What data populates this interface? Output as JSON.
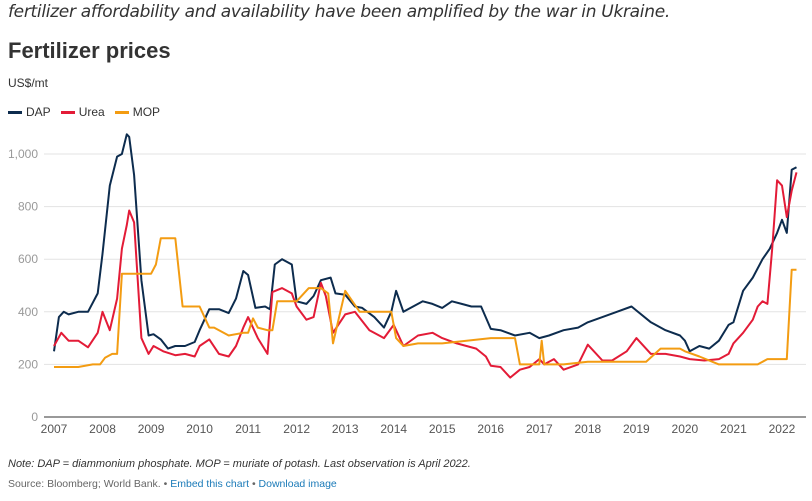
{
  "intro_text": "fertilizer affordability and availability have been amplified by the war in Ukraine.",
  "chart_data": {
    "type": "line",
    "title": "Fertilizer prices",
    "ylabel": "US$/mt",
    "xlabel": "",
    "ylim": [
      0,
      1000
    ],
    "xlim": [
      2007,
      2022.3
    ],
    "yticks": [
      "0",
      "200",
      "400",
      "600",
      "800",
      "1,000"
    ],
    "ytick_values": [
      0,
      200,
      400,
      600,
      800,
      1000
    ],
    "xticks": [
      "2007",
      "2008",
      "2009",
      "2010",
      "2011",
      "2012",
      "2013",
      "2014",
      "2015",
      "2016",
      "2017",
      "2018",
      "2019",
      "2020",
      "2021",
      "2022"
    ],
    "xtick_values": [
      2007,
      2008,
      2009,
      2010,
      2011,
      2012,
      2013,
      2014,
      2015,
      2016,
      2017,
      2018,
      2019,
      2020,
      2021,
      2022
    ],
    "grid": true,
    "legend_position": "top-left",
    "series": [
      {
        "name": "DAP",
        "color": "#0d2c4e",
        "x": [
          2007.0,
          2007.1,
          2007.2,
          2007.3,
          2007.5,
          2007.7,
          2007.9,
          2008.0,
          2008.15,
          2008.3,
          2008.4,
          2008.5,
          2008.55,
          2008.65,
          2008.8,
          2008.95,
          2009.05,
          2009.2,
          2009.35,
          2009.5,
          2009.7,
          2009.9,
          2010.0,
          2010.2,
          2010.4,
          2010.6,
          2010.75,
          2010.9,
          2011.0,
          2011.15,
          2011.35,
          2011.45,
          2011.55,
          2011.7,
          2011.9,
          2012.0,
          2012.2,
          2012.35,
          2012.5,
          2012.7,
          2012.8,
          2013.0,
          2013.2,
          2013.35,
          2013.6,
          2013.8,
          2013.95,
          2014.05,
          2014.2,
          2014.4,
          2014.6,
          2014.8,
          2015.0,
          2015.2,
          2015.4,
          2015.6,
          2015.8,
          2016.0,
          2016.2,
          2016.5,
          2016.8,
          2017.0,
          2017.2,
          2017.5,
          2017.8,
          2018.0,
          2018.3,
          2018.6,
          2018.9,
          2019.0,
          2019.3,
          2019.6,
          2019.9,
          2020.0,
          2020.1,
          2020.3,
          2020.5,
          2020.7,
          2020.9,
          2021.0,
          2021.2,
          2021.4,
          2021.6,
          2021.75,
          2021.9,
          2022.0,
          2022.1,
          2022.2,
          2022.3
        ],
        "y": [
          250,
          380,
          400,
          390,
          400,
          400,
          470,
          620,
          880,
          990,
          1000,
          1075,
          1065,
          920,
          520,
          310,
          315,
          295,
          260,
          270,
          270,
          285,
          330,
          410,
          410,
          395,
          450,
          555,
          540,
          415,
          420,
          410,
          580,
          600,
          580,
          440,
          430,
          460,
          520,
          530,
          470,
          465,
          420,
          415,
          380,
          340,
          400,
          480,
          400,
          420,
          440,
          430,
          415,
          440,
          430,
          420,
          420,
          335,
          330,
          310,
          320,
          300,
          310,
          330,
          340,
          360,
          380,
          400,
          420,
          405,
          360,
          330,
          310,
          290,
          250,
          270,
          260,
          290,
          350,
          360,
          480,
          530,
          600,
          640,
          700,
          750,
          700,
          940,
          950
        ]
      },
      {
        "name": "Urea",
        "color": "#e31b37",
        "x": [
          2007.0,
          2007.15,
          2007.3,
          2007.5,
          2007.7,
          2007.9,
          2008.0,
          2008.15,
          2008.3,
          2008.4,
          2008.5,
          2008.55,
          2008.65,
          2008.8,
          2008.95,
          2009.05,
          2009.25,
          2009.5,
          2009.7,
          2009.9,
          2010.0,
          2010.2,
          2010.4,
          2010.6,
          2010.75,
          2010.9,
          2011.0,
          2011.2,
          2011.4,
          2011.5,
          2011.7,
          2011.9,
          2012.0,
          2012.2,
          2012.35,
          2012.5,
          2012.6,
          2012.75,
          2013.0,
          2013.2,
          2013.5,
          2013.8,
          2014.0,
          2014.2,
          2014.5,
          2014.8,
          2015.0,
          2015.3,
          2015.5,
          2015.7,
          2015.9,
          2016.0,
          2016.2,
          2016.4,
          2016.6,
          2016.8,
          2017.0,
          2017.1,
          2017.3,
          2017.5,
          2017.8,
          2018.0,
          2018.3,
          2018.5,
          2018.8,
          2019.0,
          2019.3,
          2019.6,
          2019.9,
          2020.1,
          2020.4,
          2020.7,
          2020.9,
          2021.0,
          2021.2,
          2021.4,
          2021.5,
          2021.6,
          2021.7,
          2021.8,
          2021.9,
          2022.0,
          2022.1,
          2022.2,
          2022.3
        ],
        "y": [
          270,
          320,
          290,
          290,
          265,
          320,
          400,
          330,
          450,
          640,
          730,
          785,
          740,
          300,
          240,
          270,
          250,
          235,
          240,
          230,
          270,
          295,
          240,
          230,
          270,
          340,
          380,
          300,
          240,
          475,
          490,
          470,
          420,
          370,
          380,
          510,
          460,
          320,
          390,
          400,
          330,
          300,
          350,
          270,
          310,
          320,
          300,
          280,
          270,
          260,
          230,
          195,
          190,
          150,
          180,
          190,
          220,
          200,
          220,
          180,
          200,
          275,
          215,
          215,
          250,
          300,
          240,
          240,
          230,
          220,
          215,
          220,
          240,
          280,
          320,
          370,
          420,
          440,
          430,
          640,
          900,
          880,
          760,
          860,
          930
        ]
      },
      {
        "name": "MOP",
        "color": "#f39c12",
        "x": [
          2007.0,
          2007.5,
          2007.8,
          2007.95,
          2008.05,
          2008.2,
          2008.3,
          2008.4,
          2008.9,
          2009.0,
          2009.1,
          2009.2,
          2009.5,
          2009.65,
          2009.8,
          2009.9,
          2010.0,
          2010.2,
          2010.3,
          2010.6,
          2010.9,
          2011.0,
          2011.1,
          2011.2,
          2011.4,
          2011.5,
          2011.6,
          2011.9,
          2012.0,
          2012.25,
          2012.5,
          2012.65,
          2012.75,
          2013.0,
          2013.3,
          2013.95,
          2014.05,
          2014.2,
          2014.5,
          2015.0,
          2016.0,
          2016.3,
          2016.5,
          2016.6,
          2016.8,
          2017.0,
          2017.05,
          2017.1,
          2017.2,
          2017.5,
          2018.0,
          2018.5,
          2019.0,
          2019.2,
          2019.5,
          2019.7,
          2019.9,
          2020.0,
          2020.3,
          2020.7,
          2021.0,
          2021.5,
          2021.7,
          2021.9,
          2022.0,
          2022.1,
          2022.2,
          2022.3
        ],
        "y": [
          190,
          190,
          200,
          200,
          225,
          240,
          240,
          545,
          545,
          545,
          580,
          680,
          680,
          420,
          420,
          420,
          420,
          340,
          340,
          310,
          320,
          320,
          375,
          340,
          330,
          330,
          440,
          440,
          440,
          490,
          490,
          470,
          280,
          480,
          400,
          400,
          300,
          270,
          280,
          280,
          300,
          300,
          300,
          200,
          200,
          200,
          290,
          200,
          200,
          200,
          210,
          210,
          210,
          210,
          260,
          260,
          260,
          250,
          230,
          200,
          200,
          200,
          220,
          220,
          220,
          220,
          560,
          560
        ]
      }
    ]
  },
  "note": "Note: DAP = diammonium phosphate. MOP = muriate of potash. Last observation is April 2022.",
  "source": {
    "text": "Source: Bloomberg; World Bank.",
    "separator": " • ",
    "embed_link": "Embed this chart",
    "download_link": "Download image"
  }
}
